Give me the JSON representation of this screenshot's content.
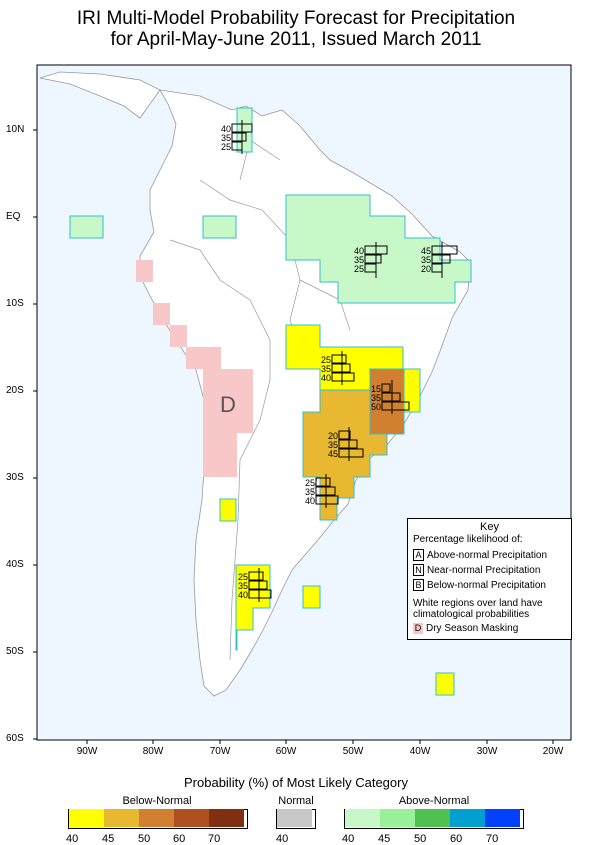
{
  "title": {
    "line1": "IRI Multi-Model Probability Forecast for Precipitation",
    "line2": "for April-May-June 2011, Issued March 2011"
  },
  "axes": {
    "lat_labels": [
      "10N",
      "EQ",
      "10S",
      "20S",
      "30S",
      "40S",
      "50S",
      "60S"
    ],
    "lon_labels": [
      "90W",
      "80W",
      "70W",
      "60W",
      "50W",
      "40W",
      "30W",
      "20W"
    ]
  },
  "dry_season_letter": "D",
  "probability_boxes": [
    {
      "values": [
        "40",
        "35",
        "25"
      ]
    },
    {
      "values": [
        "40",
        "35",
        "25"
      ]
    },
    {
      "values": [
        "45",
        "35",
        "20"
      ]
    },
    {
      "values": [
        "25",
        "35",
        "40"
      ]
    },
    {
      "values": [
        "15",
        "35",
        "50"
      ]
    },
    {
      "values": [
        "20",
        "35",
        "45"
      ]
    },
    {
      "values": [
        "25",
        "35",
        "40"
      ]
    },
    {
      "values": [
        "25",
        "35",
        "40"
      ]
    }
  ],
  "key": {
    "title": "Key",
    "subtitle": "Percentage likelihood of:",
    "rows": [
      {
        "letter": "A",
        "label": "Above-normal Precipitation"
      },
      {
        "letter": "N",
        "label": "Near-normal Precipitation"
      },
      {
        "letter": "B",
        "label": "Below-normal Precipitation"
      }
    ],
    "note_line1": "White regions over land have",
    "note_line2": "climatological probabilities",
    "dry_letter": "D",
    "dry_label": "Dry Season Masking"
  },
  "legend": {
    "title": "Probability (%) of Most Likely Category",
    "below_label": "Below-Normal",
    "normal_label": "Normal",
    "above_label": "Above-Normal",
    "below_ticks": [
      "40",
      "45",
      "50",
      "60",
      "70"
    ],
    "normal_ticks": [
      "40"
    ],
    "above_ticks": [
      "40",
      "45",
      "50",
      "60",
      "70"
    ],
    "below_colors": [
      "#ffff00",
      "#e8b830",
      "#d08030",
      "#b05020",
      "#803010"
    ],
    "normal_colors": [
      "#c8c8c8"
    ],
    "above_colors": [
      "#c8f8c8",
      "#98f098",
      "#50c050",
      "#00a0d0",
      "#0040ff"
    ]
  },
  "colors": {
    "ocean": "#eef6ff",
    "land": "#ffffff",
    "dry": "#f8c8c8",
    "above40": "#c8f8c8",
    "below40": "#ffff00",
    "below45": "#e8b830",
    "below50": "#d08030"
  }
}
